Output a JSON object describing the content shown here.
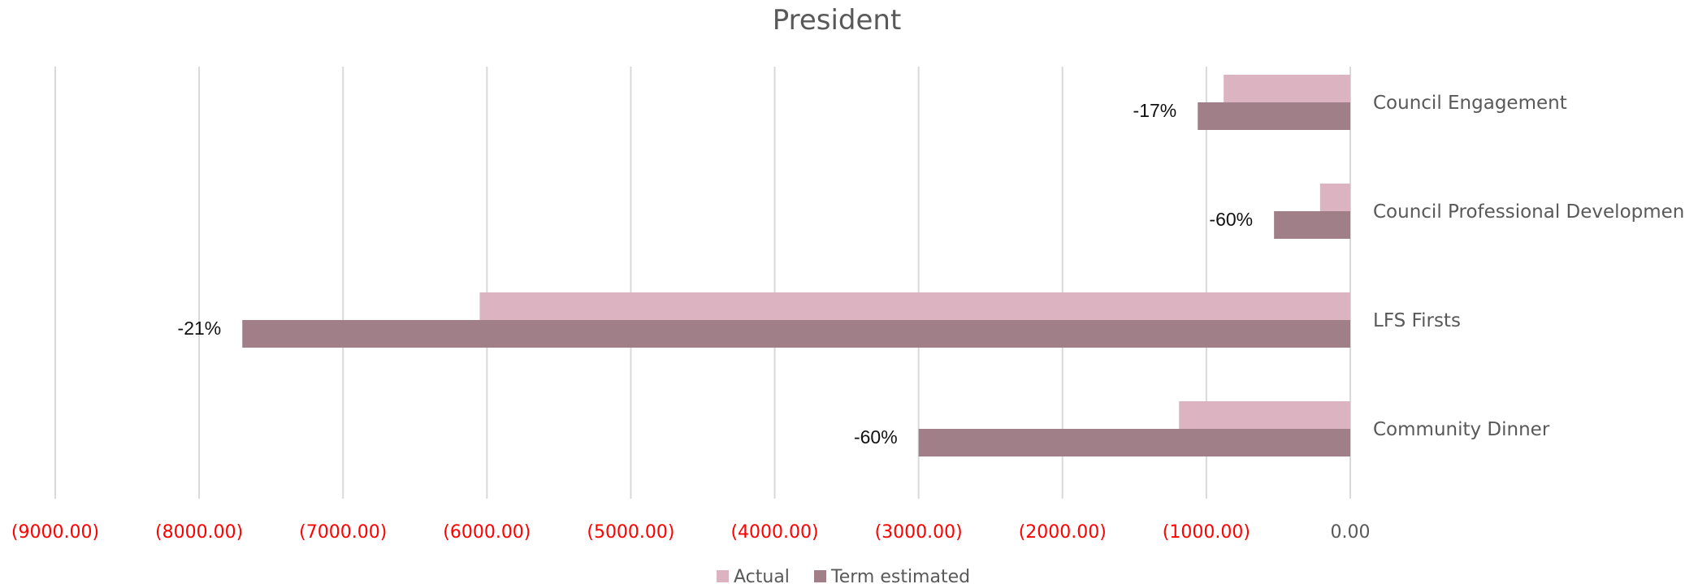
{
  "chart_data": {
    "type": "bar",
    "orientation": "horizontal",
    "title": "President",
    "categories": [
      "Council Engagement",
      "Council Professional Development",
      "LFS Firsts",
      "Community Dinner"
    ],
    "series": [
      {
        "name": "Actual",
        "values": [
          -880,
          -210,
          -6050,
          -1190
        ]
      },
      {
        "name": "Term estimated",
        "values": [
          -1060,
          -530,
          -7700,
          -3000
        ]
      }
    ],
    "data_labels": [
      "-17%",
      "-60%",
      "-21%",
      "-60%"
    ],
    "xlim": [
      -9000,
      0
    ],
    "xticks": [
      -9000,
      -8000,
      -7000,
      -6000,
      -5000,
      -4000,
      -3000,
      -2000,
      -1000,
      0
    ],
    "xtick_labels": [
      "(9000.00)",
      "(8000.00)",
      "(7000.00)",
      "(6000.00)",
      "(5000.00)",
      "(4000.00)",
      "(3000.00)",
      "(2000.00)",
      "(1000.00)",
      "0.00"
    ],
    "grid": true,
    "legend_position": "bottom",
    "colors": {
      "Actual": "#dcb3c0",
      "Term estimated": "#a07f89",
      "negative_tick": "#ff0000",
      "zero_tick": "#595959",
      "grid": "#d9d9d9"
    }
  }
}
